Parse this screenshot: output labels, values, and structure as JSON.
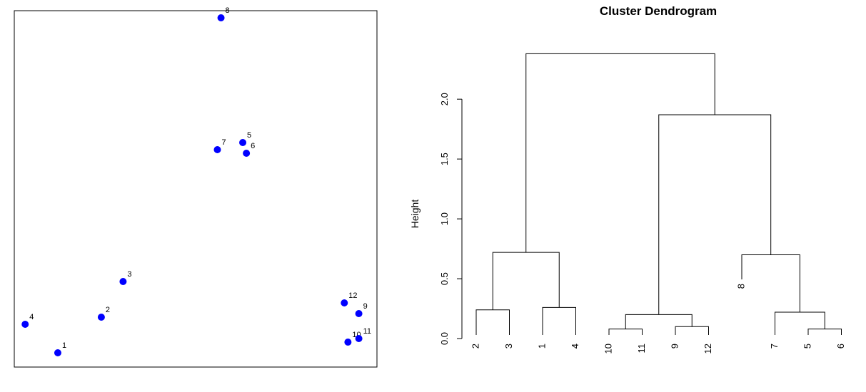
{
  "chart_data": [
    {
      "type": "scatter",
      "title": "",
      "xlabel": "",
      "ylabel": "",
      "points": [
        {
          "label": "1",
          "x": 0.12,
          "y": 0.04
        },
        {
          "label": "2",
          "x": 0.24,
          "y": 0.14
        },
        {
          "label": "3",
          "x": 0.3,
          "y": 0.24
        },
        {
          "label": "4",
          "x": 0.03,
          "y": 0.12
        },
        {
          "label": "5",
          "x": 0.63,
          "y": 0.63
        },
        {
          "label": "6",
          "x": 0.64,
          "y": 0.6
        },
        {
          "label": "7",
          "x": 0.56,
          "y": 0.61
        },
        {
          "label": "8",
          "x": 0.57,
          "y": 0.98
        },
        {
          "label": "9",
          "x": 0.95,
          "y": 0.15
        },
        {
          "label": "10",
          "x": 0.92,
          "y": 0.07
        },
        {
          "label": "11",
          "x": 0.95,
          "y": 0.08
        },
        {
          "label": "12",
          "x": 0.91,
          "y": 0.18
        }
      ],
      "xlim": [
        0,
        1
      ],
      "ylim": [
        0,
        1
      ],
      "point_color": "#0000ff"
    },
    {
      "type": "dendrogram",
      "title": "Cluster Dendrogram",
      "ylabel": "Height",
      "yticks": [
        "0.0",
        "0.5",
        "1.0",
        "1.5",
        "2.0"
      ],
      "ytick_values": [
        0,
        0.5,
        1.0,
        1.5,
        2.0
      ],
      "ylim": [
        0,
        2.4
      ],
      "leaf_order": [
        "2",
        "3",
        "1",
        "4",
        "10",
        "11",
        "9",
        "12",
        "8",
        "7",
        "5",
        "6"
      ],
      "merges": [
        {
          "left": "10",
          "right": "11",
          "height": 0.08
        },
        {
          "left": "5",
          "right": "6",
          "height": 0.08
        },
        {
          "left": "9",
          "right": "12",
          "height": 0.1
        },
        {
          "left": "2",
          "right": "3",
          "height": 0.24
        },
        {
          "left": "1",
          "right": "4",
          "height": 0.26
        },
        {
          "left": "(10,11)",
          "right": "(9,12)",
          "height": 0.2
        },
        {
          "left": "7",
          "right": "(5,6)",
          "height": 0.22
        },
        {
          "left": "8",
          "right": "(7,5,6)",
          "height": 0.7
        },
        {
          "left": "(2,3)",
          "right": "(1,4)",
          "height": 0.72
        },
        {
          "left": "(10,11,9,12)",
          "right": "(8,7,5,6)",
          "height": 1.87
        },
        {
          "left": "(2,3,1,4)",
          "right": "(10,11,9,12,8,7,5,6)",
          "height": 2.38
        }
      ]
    }
  ]
}
